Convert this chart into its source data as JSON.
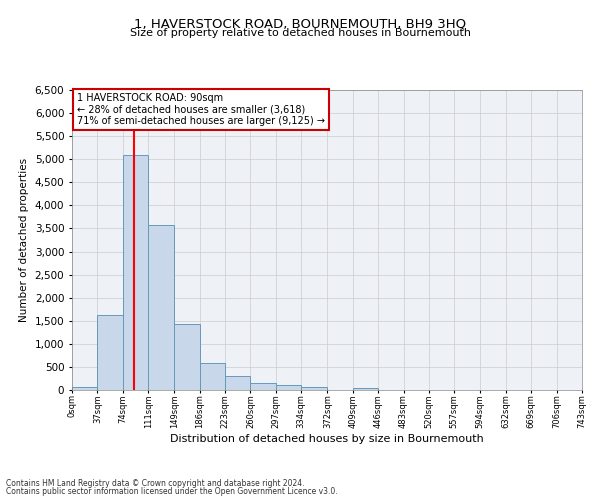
{
  "title": "1, HAVERSTOCK ROAD, BOURNEMOUTH, BH9 3HQ",
  "subtitle": "Size of property relative to detached houses in Bournemouth",
  "xlabel": "Distribution of detached houses by size in Bournemouth",
  "ylabel": "Number of detached properties",
  "bin_edges": [
    0,
    37,
    74,
    111,
    149,
    186,
    223,
    260,
    297,
    334,
    372,
    409,
    446,
    483,
    520,
    557,
    594,
    632,
    669,
    706,
    743
  ],
  "bar_heights": [
    60,
    1620,
    5100,
    3580,
    1430,
    590,
    310,
    150,
    100,
    60,
    0,
    50,
    0,
    0,
    0,
    0,
    0,
    0,
    0,
    0
  ],
  "bar_color": "#c8d8ea",
  "bar_edge_color": "#6699bb",
  "red_line_x": 90,
  "ylim": [
    0,
    6500
  ],
  "yticks": [
    0,
    500,
    1000,
    1500,
    2000,
    2500,
    3000,
    3500,
    4000,
    4500,
    5000,
    5500,
    6000,
    6500
  ],
  "annotation_title": "1 HAVERSTOCK ROAD: 90sqm",
  "annotation_line1": "← 28% of detached houses are smaller (3,618)",
  "annotation_line2": "71% of semi-detached houses are larger (9,125) →",
  "annotation_box_color": "#ffffff",
  "annotation_box_edge_color": "#cc0000",
  "footnote1": "Contains HM Land Registry data © Crown copyright and database right 2024.",
  "footnote2": "Contains public sector information licensed under the Open Government Licence v3.0.",
  "grid_color": "#cccccc",
  "background_color": "#eef2f7"
}
